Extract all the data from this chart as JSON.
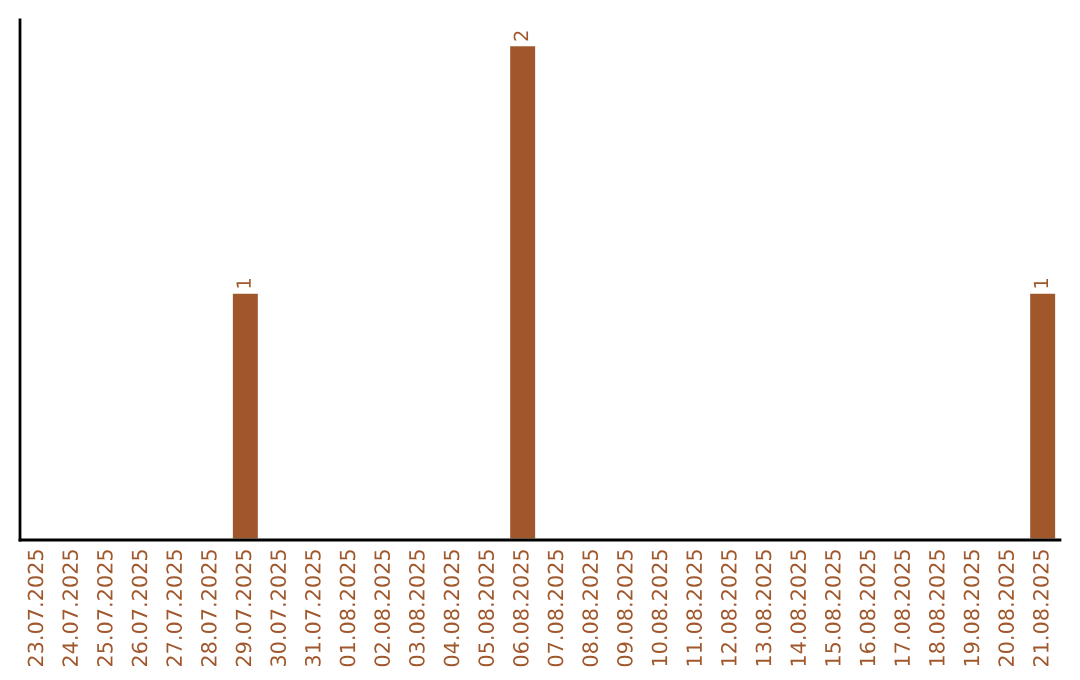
{
  "chart_data": {
    "type": "bar",
    "categories": [
      "23.07.2025",
      "24.07.2025",
      "25.07.2025",
      "26.07.2025",
      "27.07.2025",
      "28.07.2025",
      "29.07.2025",
      "30.07.2025",
      "31.07.2025",
      "01.08.2025",
      "02.08.2025",
      "03.08.2025",
      "04.08.2025",
      "05.08.2025",
      "06.08.2025",
      "07.08.2025",
      "08.08.2025",
      "09.08.2025",
      "10.08.2025",
      "11.08.2025",
      "12.08.2025",
      "13.08.2025",
      "14.08.2025",
      "15.08.2025",
      "16.08.2025",
      "17.08.2025",
      "18.08.2025",
      "19.08.2025",
      "20.08.2025",
      "21.08.2025"
    ],
    "values": [
      null,
      null,
      null,
      null,
      null,
      null,
      1,
      null,
      null,
      null,
      null,
      null,
      null,
      null,
      2,
      null,
      null,
      null,
      null,
      null,
      null,
      null,
      null,
      null,
      null,
      null,
      null,
      null,
      null,
      1
    ],
    "value_labels": [
      null,
      null,
      null,
      null,
      null,
      null,
      "1",
      null,
      null,
      null,
      null,
      null,
      null,
      null,
      "2",
      null,
      null,
      null,
      null,
      null,
      null,
      null,
      null,
      null,
      null,
      null,
      null,
      null,
      null,
      "1"
    ],
    "color": "#a0572b",
    "grid": false,
    "legend": false
  }
}
